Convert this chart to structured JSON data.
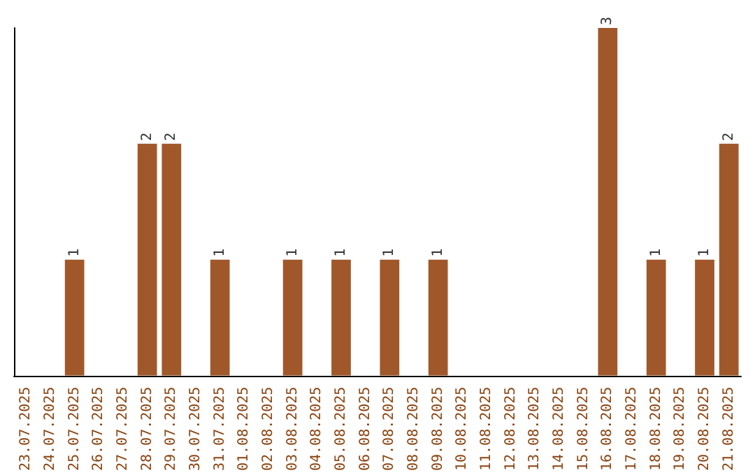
{
  "chart_data": {
    "type": "bar",
    "categories": [
      "23.07.2025",
      "24.07.2025",
      "25.07.2025",
      "26.07.2025",
      "27.07.2025",
      "28.07.2025",
      "29.07.2025",
      "30.07.2025",
      "31.07.2025",
      "01.08.2025",
      "02.08.2025",
      "03.08.2025",
      "04.08.2025",
      "05.08.2025",
      "06.08.2025",
      "07.08.2025",
      "08.08.2025",
      "09.08.2025",
      "10.08.2025",
      "11.08.2025",
      "12.08.2025",
      "13.08.2025",
      "14.08.2025",
      "15.08.2025",
      "16.08.2025",
      "17.08.2025",
      "18.08.2025",
      "19.08.2025",
      "20.08.2025",
      "21.08.2025"
    ],
    "values": [
      0,
      0,
      1,
      0,
      0,
      2,
      2,
      0,
      1,
      0,
      0,
      1,
      0,
      1,
      0,
      1,
      0,
      1,
      0,
      0,
      0,
      0,
      0,
      0,
      3,
      0,
      1,
      0,
      1,
      2
    ],
    "value_labels": [
      null,
      null,
      "1",
      null,
      null,
      "2",
      "2",
      null,
      "1",
      null,
      null,
      "1",
      null,
      "1",
      null,
      "1",
      null,
      "1",
      null,
      null,
      null,
      null,
      null,
      null,
      "3",
      null,
      "1",
      null,
      "1",
      "2"
    ],
    "color": "#a0582a",
    "tick_labels": "x"
  }
}
